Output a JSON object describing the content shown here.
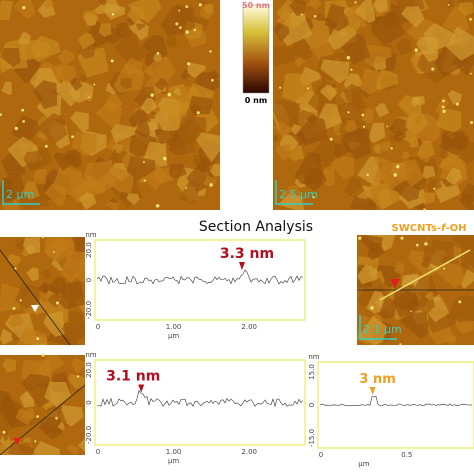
{
  "images": {
    "top_left_scale": "2 μm",
    "top_right_scale": "2.5 μm",
    "right_scale": "2 1 μm"
  },
  "colorbar": {
    "max": "50 nm",
    "min": "0 nm"
  },
  "title": "Section Analysis",
  "sample_label": [
    "SWCNTs-",
    "f",
    "-OH"
  ],
  "profiles": [
    {
      "y_unit": "nm",
      "yticks": [
        "20.0",
        "0",
        "-20.0"
      ],
      "xticks": [
        "0",
        "1.00",
        "2.00"
      ],
      "x_unit": "μm",
      "annotation": "3.3 nm"
    },
    {
      "y_unit": "nm",
      "yticks": [
        "20.0",
        "0",
        "-20.0"
      ],
      "xticks": [
        "0",
        "1.00",
        "2.00"
      ],
      "x_unit": "μm",
      "annotation": "3.1 nm"
    },
    {
      "y_unit": "nm",
      "yticks": [
        "15.0",
        "0",
        "-15.0"
      ],
      "xticks": [
        "0",
        "0.5"
      ],
      "x_unit": "μm",
      "annotation": "3 nm"
    }
  ]
}
